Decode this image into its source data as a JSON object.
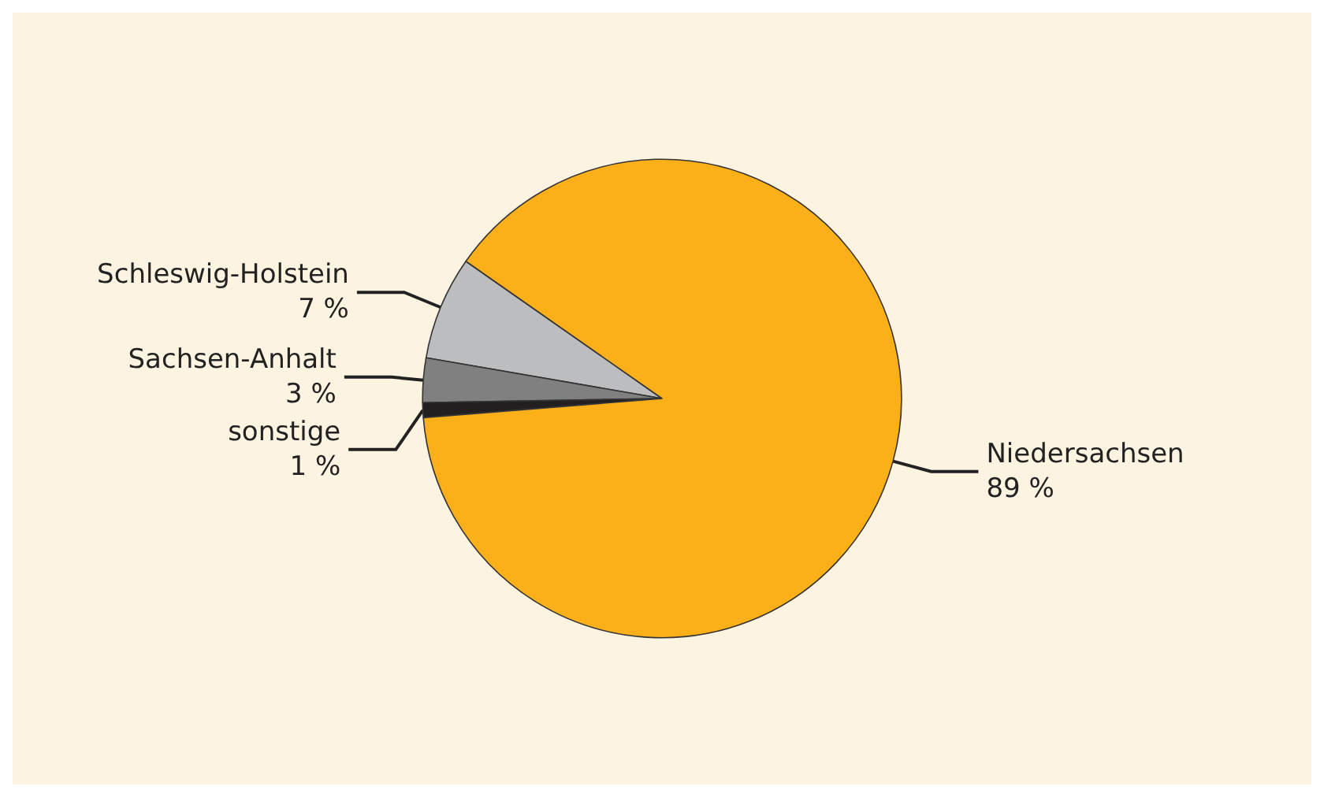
{
  "chart_data": {
    "type": "pie",
    "categories": [
      "Schleswig-Holstein",
      "Sachsen-Anhalt",
      "sonstige",
      "Niedersachsen"
    ],
    "values": [
      7,
      3,
      1,
      89
    ],
    "value_labels": [
      "7 %",
      "3 %",
      "1 %",
      "89 %"
    ],
    "colors": [
      "#bcbdbf",
      "#808080",
      "#231f20",
      "#fbb01a"
    ],
    "legend": false
  }
}
